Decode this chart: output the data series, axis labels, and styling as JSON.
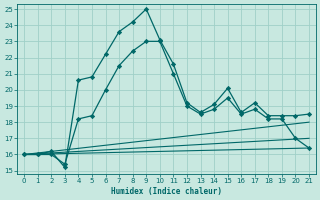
{
  "xlabel": "Humidex (Indice chaleur)",
  "bg_color": "#c8e8e0",
  "grid_color": "#a0d0c8",
  "line_color": "#006868",
  "spine_color": "#006868",
  "xlim": [
    -0.5,
    21.5
  ],
  "ylim": [
    14.8,
    25.3
  ],
  "xticks": [
    0,
    1,
    2,
    3,
    4,
    5,
    6,
    7,
    8,
    9,
    10,
    11,
    12,
    13,
    14,
    15,
    16,
    17,
    18,
    19,
    20,
    21
  ],
  "yticks": [
    15,
    16,
    17,
    18,
    19,
    20,
    21,
    22,
    23,
    24,
    25
  ],
  "tick_fontsize": 5.0,
  "label_fontsize": 5.5,
  "series": [
    {
      "x": [
        0,
        1,
        2,
        3,
        4,
        5,
        6,
        7,
        8,
        9,
        10,
        11,
        12,
        13,
        14,
        15,
        16,
        17,
        18,
        19,
        20,
        21
      ],
      "y": [
        16.0,
        16.0,
        16.2,
        15.2,
        20.6,
        20.8,
        22.2,
        23.6,
        24.2,
        25.0,
        23.1,
        21.6,
        19.2,
        18.6,
        19.1,
        20.1,
        18.6,
        19.2,
        18.4,
        18.4,
        18.4,
        18.5
      ],
      "marker": "D",
      "markersize": 2.2,
      "linewidth": 0.9
    },
    {
      "x": [
        0,
        1,
        2,
        3,
        4,
        5,
        6,
        7,
        8,
        9,
        10,
        11,
        12,
        13,
        14,
        15,
        16,
        17,
        18,
        19,
        20,
        21
      ],
      "y": [
        16.0,
        16.0,
        16.0,
        15.4,
        18.2,
        18.4,
        20.0,
        21.5,
        22.4,
        23.0,
        23.0,
        21.0,
        19.0,
        18.5,
        18.8,
        19.5,
        18.5,
        18.8,
        18.2,
        18.2,
        17.0,
        16.4
      ],
      "marker": "D",
      "markersize": 2.2,
      "linewidth": 0.9
    },
    {
      "x": [
        0,
        21
      ],
      "y": [
        16.0,
        18.0
      ],
      "marker": null,
      "linewidth": 0.8
    },
    {
      "x": [
        0,
        21
      ],
      "y": [
        16.0,
        17.0
      ],
      "marker": null,
      "linewidth": 0.8
    },
    {
      "x": [
        0,
        21
      ],
      "y": [
        16.0,
        16.4
      ],
      "marker": null,
      "linewidth": 0.8
    }
  ]
}
